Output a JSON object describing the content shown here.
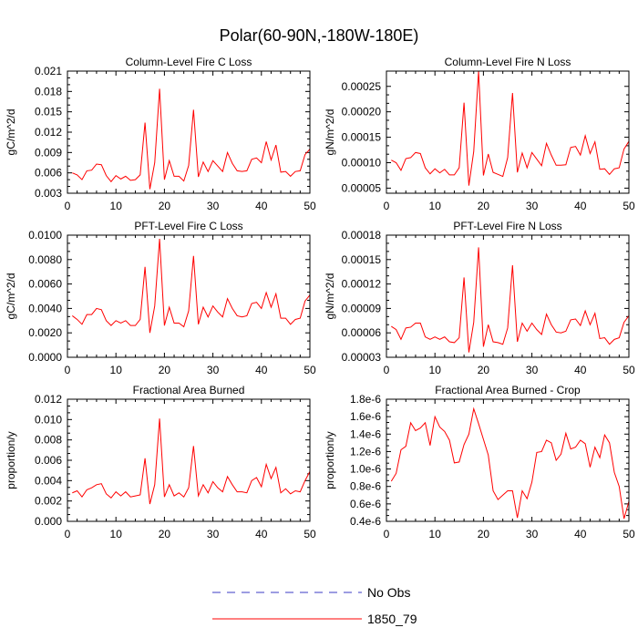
{
  "figure": {
    "title": "Polar(60-90N,-180W-180E)"
  },
  "legend": {
    "items": [
      {
        "label": "No Obs",
        "color": "#3b3bc4",
        "style": "dashed"
      },
      {
        "label": "1850_79",
        "color": "#ff0000",
        "style": "solid"
      }
    ]
  },
  "chart_data": [
    {
      "type": "line",
      "title": "Column-Level Fire C Loss",
      "xlabel": "",
      "ylabel": "gC/m^2/d",
      "xlim": [
        0,
        50
      ],
      "ylim": [
        0.003,
        0.021
      ],
      "xticks": [
        0,
        10,
        20,
        30,
        40,
        50
      ],
      "xtick_labels": [
        "0",
        "10",
        "20",
        "30",
        "40",
        "50"
      ],
      "yticks": [
        0.003,
        0.006,
        0.009,
        0.012,
        0.015,
        0.018,
        0.021
      ],
      "ytick_labels": [
        "0.003",
        "0.006",
        "0.009",
        "0.012",
        "0.015",
        "0.018",
        "0.021"
      ],
      "series": [
        {
          "name": "1850_79",
          "color": "#ff0000",
          "x": [
            1,
            2,
            3,
            4,
            5,
            6,
            7,
            8,
            9,
            10,
            11,
            12,
            13,
            14,
            15,
            16,
            17,
            18,
            19,
            20,
            21,
            22,
            23,
            24,
            25,
            26,
            27,
            28,
            29,
            30,
            31,
            32,
            33,
            34,
            35,
            36,
            37,
            38,
            39,
            40,
            41,
            42,
            43,
            44,
            45,
            46,
            47,
            48,
            49,
            50
          ],
          "values": [
            0.006,
            0.0057,
            0.005,
            0.0063,
            0.0064,
            0.0073,
            0.0072,
            0.0056,
            0.0047,
            0.0056,
            0.0051,
            0.0055,
            0.0049,
            0.005,
            0.0057,
            0.0134,
            0.0036,
            0.0075,
            0.0184,
            0.005,
            0.0078,
            0.0055,
            0.0055,
            0.0048,
            0.0071,
            0.0153,
            0.0054,
            0.0076,
            0.0062,
            0.0078,
            0.007,
            0.0062,
            0.009,
            0.0074,
            0.0063,
            0.0062,
            0.0063,
            0.008,
            0.0082,
            0.0075,
            0.0106,
            0.0079,
            0.0101,
            0.0061,
            0.0062,
            0.0055,
            0.0062,
            0.0063,
            0.0087,
            0.0095
          ]
        }
      ]
    },
    {
      "type": "line",
      "title": "Column-Level Fire N Loss",
      "xlabel": "",
      "ylabel": "gN/m^2/d",
      "xlim": [
        0,
        50
      ],
      "ylim": [
        4e-05,
        0.00028
      ],
      "xticks": [
        0,
        10,
        20,
        30,
        40,
        50
      ],
      "xtick_labels": [
        "0",
        "10",
        "20",
        "30",
        "40",
        "50"
      ],
      "yticks": [
        5e-05,
        0.0001,
        0.00015,
        0.0002,
        0.00025
      ],
      "ytick_labels": [
        "0.00005",
        "0.00010",
        "0.00015",
        "0.00020",
        "0.00025"
      ],
      "series": [
        {
          "name": "1850_79",
          "color": "#ff0000",
          "x": [
            1,
            2,
            3,
            4,
            5,
            6,
            7,
            8,
            9,
            10,
            11,
            12,
            13,
            14,
            15,
            16,
            17,
            18,
            19,
            20,
            21,
            22,
            23,
            24,
            25,
            26,
            27,
            28,
            29,
            30,
            31,
            32,
            33,
            34,
            35,
            36,
            37,
            38,
            39,
            40,
            41,
            42,
            43,
            44,
            45,
            46,
            47,
            48,
            49,
            50
          ],
          "values": [
            0.000105,
            0.0001,
            8.5e-05,
            0.000108,
            0.00011,
            0.00012,
            0.000118,
            9e-05,
            7.8e-05,
            8.8e-05,
            8e-05,
            8.7e-05,
            7.6e-05,
            7.6e-05,
            9e-05,
            0.000218,
            5.5e-05,
            0.000122,
            0.00028,
            7.5e-05,
            0.000117,
            8.1e-05,
            7.7e-05,
            7.3e-05,
            0.00011,
            0.000237,
            8.1e-05,
            0.000119,
            9e-05,
            0.00012,
            0.000107,
            9.4e-05,
            0.000138,
            0.000115,
            9.5e-05,
            9.5e-05,
            9.6e-05,
            0.00013,
            0.000132,
            0.000115,
            0.000153,
            0.000118,
            0.000141,
            8.7e-05,
            8.8e-05,
            7.7e-05,
            8.8e-05,
            9e-05,
            0.000127,
            0.000142
          ]
        }
      ]
    },
    {
      "type": "line",
      "title": "PFT-Level Fire C Loss",
      "xlabel": "",
      "ylabel": "gC/m^2/d",
      "xlim": [
        0,
        50
      ],
      "ylim": [
        0.0,
        0.01
      ],
      "xticks": [
        0,
        10,
        20,
        30,
        40,
        50
      ],
      "xtick_labels": [
        "0",
        "10",
        "20",
        "30",
        "40",
        "50"
      ],
      "yticks": [
        0.0,
        0.002,
        0.004,
        0.006,
        0.008,
        0.01
      ],
      "ytick_labels": [
        "0.0000",
        "0.0020",
        "0.0040",
        "0.0060",
        "0.0080",
        "0.0100"
      ],
      "series": [
        {
          "name": "1850_79",
          "color": "#ff0000",
          "x": [
            1,
            2,
            3,
            4,
            5,
            6,
            7,
            8,
            9,
            10,
            11,
            12,
            13,
            14,
            15,
            16,
            17,
            18,
            19,
            20,
            21,
            22,
            23,
            24,
            25,
            26,
            27,
            28,
            29,
            30,
            31,
            32,
            33,
            34,
            35,
            36,
            37,
            38,
            39,
            40,
            41,
            42,
            43,
            44,
            45,
            46,
            47,
            48,
            49,
            50
          ],
          "values": [
            0.0034,
            0.0031,
            0.0027,
            0.0035,
            0.0035,
            0.004,
            0.0039,
            0.003,
            0.0026,
            0.003,
            0.0028,
            0.003,
            0.0026,
            0.0026,
            0.0031,
            0.0074,
            0.002,
            0.0042,
            0.0097,
            0.0026,
            0.0041,
            0.0028,
            0.0028,
            0.0025,
            0.0038,
            0.0083,
            0.0027,
            0.0041,
            0.0033,
            0.0042,
            0.0037,
            0.0033,
            0.0048,
            0.004,
            0.0034,
            0.0033,
            0.0034,
            0.0044,
            0.0045,
            0.004,
            0.0053,
            0.0041,
            0.0052,
            0.0032,
            0.0032,
            0.0027,
            0.0031,
            0.0032,
            0.0046,
            0.0051
          ]
        }
      ]
    },
    {
      "type": "line",
      "title": "PFT-Level Fire N Loss",
      "xlabel": "",
      "ylabel": "gN/m^2/d",
      "xlim": [
        0,
        50
      ],
      "ylim": [
        3e-05,
        0.00018
      ],
      "xticks": [
        0,
        10,
        20,
        30,
        40,
        50
      ],
      "xtick_labels": [
        "0",
        "10",
        "20",
        "30",
        "40",
        "50"
      ],
      "yticks": [
        3e-05,
        6e-05,
        9e-05,
        0.00012,
        0.00015,
        0.00018
      ],
      "ytick_labels": [
        "0.00003",
        "0.00006",
        "0.00009",
        "0.00012",
        "0.00015",
        "0.00018"
      ],
      "series": [
        {
          "name": "1850_79",
          "color": "#ff0000",
          "x": [
            1,
            2,
            3,
            4,
            5,
            6,
            7,
            8,
            9,
            10,
            11,
            12,
            13,
            14,
            15,
            16,
            17,
            18,
            19,
            20,
            21,
            22,
            23,
            24,
            25,
            26,
            27,
            28,
            29,
            30,
            31,
            32,
            33,
            34,
            35,
            36,
            37,
            38,
            39,
            40,
            41,
            42,
            43,
            44,
            45,
            46,
            47,
            48,
            49,
            50
          ],
          "values": [
            6.8e-05,
            6.4e-05,
            5.2e-05,
            6.6e-05,
            6.7e-05,
            7.2e-05,
            7.2e-05,
            5.5e-05,
            5.2e-05,
            5.5e-05,
            5.2e-05,
            5.5e-05,
            4.9e-05,
            4.8e-05,
            5.4e-05,
            0.000128,
            3.6e-05,
            7.3e-05,
            0.000165,
            4.3e-05,
            7e-05,
            4.9e-05,
            4.8e-05,
            4.6e-05,
            6.6e-05,
            0.000143,
            4.9e-05,
            7.2e-05,
            6.2e-05,
            7.2e-05,
            6.4e-05,
            5.8e-05,
            8.3e-05,
            7e-05,
            6.1e-05,
            6e-05,
            6.2e-05,
            7.6e-05,
            7.7e-05,
            6.9e-05,
            8.7e-05,
            7e-05,
            8.4e-05,
            5.3e-05,
            5.4e-05,
            4.6e-05,
            5.2e-05,
            5.4e-05,
            7.3e-05,
            8.1e-05
          ]
        }
      ]
    },
    {
      "type": "line",
      "title": "Fractional Area Burned",
      "xlabel": "",
      "ylabel": "proportion/y",
      "xlim": [
        0,
        50
      ],
      "ylim": [
        0.0,
        0.012
      ],
      "xticks": [
        0,
        10,
        20,
        30,
        40,
        50
      ],
      "xtick_labels": [
        "0",
        "10",
        "20",
        "30",
        "40",
        "50"
      ],
      "yticks": [
        0.0,
        0.002,
        0.004,
        0.006,
        0.008,
        0.01,
        0.012
      ],
      "ytick_labels": [
        "0.000",
        "0.002",
        "0.004",
        "0.006",
        "0.008",
        "0.010",
        "0.012"
      ],
      "series": [
        {
          "name": "1850_79",
          "color": "#ff0000",
          "x": [
            1,
            2,
            3,
            4,
            5,
            6,
            7,
            8,
            9,
            10,
            11,
            12,
            13,
            14,
            15,
            16,
            17,
            18,
            19,
            20,
            21,
            22,
            23,
            24,
            25,
            26,
            27,
            28,
            29,
            30,
            31,
            32,
            33,
            34,
            35,
            36,
            37,
            38,
            39,
            40,
            41,
            42,
            43,
            44,
            45,
            46,
            47,
            48,
            49,
            50
          ],
          "values": [
            0.0028,
            0.003,
            0.0024,
            0.0031,
            0.0033,
            0.0036,
            0.0037,
            0.0027,
            0.0023,
            0.0029,
            0.0025,
            0.0029,
            0.0024,
            0.0025,
            0.0026,
            0.0062,
            0.0017,
            0.0036,
            0.0101,
            0.0024,
            0.0036,
            0.0025,
            0.0028,
            0.0024,
            0.0033,
            0.0074,
            0.0025,
            0.0036,
            0.0028,
            0.0039,
            0.0033,
            0.0029,
            0.0044,
            0.0036,
            0.0029,
            0.0029,
            0.0028,
            0.004,
            0.0043,
            0.0034,
            0.0056,
            0.0042,
            0.0053,
            0.0028,
            0.0032,
            0.0027,
            0.003,
            0.0029,
            0.004,
            0.0049
          ]
        }
      ]
    },
    {
      "type": "line",
      "title": "Fractional Area Burned - Crop",
      "xlabel": "",
      "ylabel": "proportion/y",
      "xlim": [
        0,
        50
      ],
      "ylim": [
        4e-07,
        1.8e-06
      ],
      "xticks": [
        0,
        10,
        20,
        30,
        40,
        50
      ],
      "xtick_labels": [
        "0",
        "10",
        "20",
        "30",
        "40",
        "50"
      ],
      "yticks": [
        4e-07,
        6e-07,
        8e-07,
        1e-06,
        1.2e-06,
        1.4e-06,
        1.6e-06,
        1.8e-06
      ],
      "ytick_labels": [
        "0.4e-6",
        "0.6e-6",
        "0.8e-6",
        "1.0e-6",
        "1.2e-6",
        "1.4e-6",
        "1.6e-6",
        "1.8e-6"
      ],
      "series": [
        {
          "name": "1850_79",
          "color": "#ff0000",
          "x": [
            1,
            2,
            3,
            4,
            5,
            6,
            7,
            8,
            9,
            10,
            11,
            12,
            13,
            14,
            15,
            16,
            17,
            18,
            19,
            20,
            21,
            22,
            23,
            24,
            25,
            26,
            27,
            28,
            29,
            30,
            31,
            32,
            33,
            34,
            35,
            36,
            37,
            38,
            39,
            40,
            41,
            42,
            43,
            44,
            45,
            46,
            47,
            48,
            49,
            50
          ],
          "values": [
            8.6e-07,
            9.5e-07,
            1.22e-06,
            1.26e-06,
            1.53e-06,
            1.44e-06,
            1.47e-06,
            1.53e-06,
            1.27e-06,
            1.6e-06,
            1.48e-06,
            1.43e-06,
            1.33e-06,
            1.07e-06,
            1.08e-06,
            1.28e-06,
            1.4e-06,
            1.69e-06,
            1.52e-06,
            1.34e-06,
            1.16e-06,
            7.5e-07,
            6.5e-07,
            7e-07,
            7.5e-07,
            7.5e-07,
            4.4e-07,
            7.5e-07,
            6.6e-07,
            8.5e-07,
            1.19e-06,
            1.2e-06,
            1.33e-06,
            1.3e-06,
            1.1e-06,
            1.17e-06,
            1.41e-06,
            1.23e-06,
            1.25e-06,
            1.33e-06,
            1.29e-06,
            1.02e-06,
            1.25e-06,
            1.13e-06,
            1.39e-06,
            1.3e-06,
            9.6e-07,
            8e-07,
            4.3e-07,
            6.3e-07
          ]
        }
      ]
    }
  ]
}
